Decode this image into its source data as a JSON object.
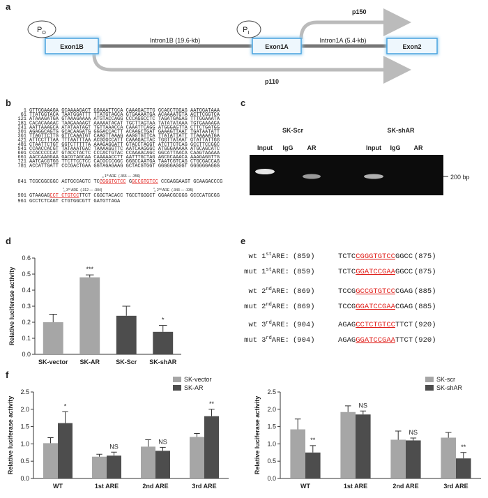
{
  "panel_labels": [
    "a",
    "b",
    "c",
    "d",
    "e",
    "f"
  ],
  "diagram": {
    "promoters": [
      {
        "p": "P",
        "sub": "O"
      },
      {
        "p": "P",
        "sub": "I"
      }
    ],
    "exons": [
      "Exon1B",
      "Exon1A",
      "Exon2"
    ],
    "introns": [
      "Intron1B (19.6-kb)",
      "Intron1A (5.4-kb)"
    ],
    "transcripts": [
      "p150",
      "p110"
    ]
  },
  "sequence": {
    "lines": [
      {
        "n": 1,
        "segments": [
          {
            "text": "GTTGGAAAGA GCAAAAGACT GGAAATTGCA CAAAGACTTG GCAGCTGGAG AATGGATAAA"
          }
        ]
      },
      {
        "n": 61,
        "segments": [
          {
            "text": "TTATGGTACA TAATGGATTT TTATGTAGCA GTGAAAATGA ACAAAATGTA ACTTCGGTCA"
          }
        ]
      },
      {
        "n": 121,
        "segments": [
          {
            "text": "ATAAAGATGA GTAAAGAAAA ATGTACCAGG CCCAGGCCTC TAGATGAGAG TTTGGAAATA"
          }
        ]
      },
      {
        "n": 181,
        "segments": [
          {
            "text": "CACACAAAAC TAAGAAAAGT AAAAATACAT TGCTTAGTAA TATATATAAA TGTGAAAAGA"
          }
        ]
      },
      {
        "n": 241,
        "segments": [
          {
            "text": "AATTAAAGCA ATATAATAGT TGTTAAACCA CAAATTCAGG ATGGGAGTTA CTTCTGATGG"
          }
        ]
      },
      {
        "n": 301,
        "segments": [
          {
            "text": "AGAGGCAGTG GCACAAGATG GGGACCACTT ACAAGCTGAT GAAAGTTAAT TGATAATATT"
          }
        ]
      },
      {
        "n": 361,
        "segments": [
          {
            "text": "TTAGTTCTTG GTTCAAATGT CAAGTTAAAG AAGGTGTTCA TTATATTATT TTAAAAATGA"
          }
        ]
      },
      {
        "n": 421,
        "segments": [
          {
            "text": "ATTCCTTTAA TTTAATTTAA ACGGGCCATT CAAAGACTAC TGGTTATAAT GTATTATTGG"
          }
        ]
      },
      {
        "n": 481,
        "segments": [
          {
            "text": "CTAATTCTGT GGTCTTTTTA AAAGAGGATT GTACCTAGGT ATCTTCTCAG GCCTTCCGGC"
          }
        ]
      },
      {
        "n": 541,
        "segments": [
          {
            "text": "CCAACCACGT TATAAATGAC TAAAAGGTTC AATCAAGGGC ATGGGAAAAA ATGCAGCATC"
          }
        ]
      },
      {
        "n": 601,
        "segments": [
          {
            "text": "CCACCCCCAT GTACCTACTC CCCACTGTAC CCAAAACAGC GGCATTAACA CAAGTAAAAA"
          }
        ]
      },
      {
        "n": 661,
        "segments": [
          {
            "text": "AACCAAGGAA GACGTAGCAA CAAAAACCTT AATTTGCTAG AGCGCAAACA AAAGAGGTTG"
          }
        ]
      },
      {
        "n": 721,
        "segments": [
          {
            "text": "AATCACGTGG TTCTTCCTCC CACGCCCGGC GGGCCAATGA TAATCGTCAG CTGCGACCAG"
          }
        ]
      },
      {
        "n": 781,
        "segments": [
          {
            "text": "ACCATTGATT CCCGACTGAA GGTAGAGAAG GCTACGTGGT GGGGGAGGGT GGGGGGAGGG"
          }
        ]
      },
      {
        "n": 841,
        "segments": [
          {
            "text": "TCGCGGCGGC ACTGCCAGTC TC"
          },
          {
            "text": "CGGGTGTCC",
            "highlight": true
          },
          {
            "text": " G"
          },
          {
            "text": "GCCGTGTCC",
            "highlight": true
          },
          {
            "text": " CCGAGGAAGT GCAAGACCCG"
          }
        ]
      },
      {
        "n": 901,
        "segments": [
          {
            "text": "GTAAGAG"
          },
          {
            "text": "CCT CTGTCC",
            "highlight": true
          },
          {
            "text": "TTCT CGGCTACACC TGCCTGGGCT GGAACGCGGG GCCCATGCGG"
          }
        ]
      },
      {
        "n": 961,
        "segments": [
          {
            "text": "GCCTCTCAGT CTGTGGCGTT GATGTTAGA"
          }
        ]
      }
    ],
    "sites": [
      {
        "ord": "1",
        "sup": "st",
        "name": " ARE",
        "range": "(-366 — -356)"
      },
      {
        "ord": "3",
        "sup": "rd",
        "name": " ARE",
        "range": "(-312 — -304)"
      },
      {
        "ord": "2",
        "sup": "nd",
        "name": " ARE",
        "range": "(-343 — -335)"
      }
    ]
  },
  "gel": {
    "groups": [
      "SK-Scr",
      "SK-shAR"
    ],
    "lanes": [
      "Input",
      "IgG",
      "AR",
      "Input",
      "IgG",
      "AR"
    ],
    "marker": "200 bp"
  },
  "table": {
    "rows": [
      {
        "kind": "wt",
        "ord": "1",
        "sup": "st",
        "name": "ARE:",
        "start": "(859)",
        "pre": "TCTC",
        "site": "CGGGTGTCC",
        "post": "GGCC",
        "end": "(875)"
      },
      {
        "kind": "mut",
        "ord": "1",
        "sup": "st",
        "name": "ARE:",
        "start": "(859)",
        "pre": "TCTC",
        "site": "GGATCCGAA",
        "post": "GGCC",
        "end": "(875)"
      },
      {
        "kind": "wt",
        "ord": "2",
        "sup": "nd",
        "name": "ARE:",
        "start": "(869)",
        "pre": "TCCG",
        "site": "GCCGTGTCC",
        "post": "CGAG",
        "end": "(885)"
      },
      {
        "kind": "mut",
        "ord": "2",
        "sup": "nd",
        "name": "ARE:",
        "start": "(869)",
        "pre": "TCCG",
        "site": "GGATCCGAA",
        "post": "CGAG",
        "end": "(885)"
      },
      {
        "kind": "wt",
        "ord": "3",
        "sup": "rd",
        "name": "ARE:",
        "start": "(904)",
        "pre": "AGAG",
        "site": "CCTCTGTCC",
        "post": "TTCT",
        "end": "(920)"
      },
      {
        "kind": "mut",
        "ord": "3",
        "sup": "rd",
        "name": "ARE:",
        "start": "(904)",
        "pre": "AGAG",
        "site": "GGATCCGAA",
        "post": "TTCT",
        "end": "(920)"
      }
    ]
  },
  "chart_data": [
    {
      "type": "bar",
      "ylabel": "Relative luciferase activity",
      "categories": [
        "SK-vector",
        "SK-AR",
        "SK-Scr",
        "SK-shAR"
      ],
      "values": [
        0.2,
        0.48,
        0.24,
        0.14
      ],
      "errors": [
        0.05,
        0.015,
        0.06,
        0.04
      ],
      "colors": [
        "#a6a6a6",
        "#a6a6a6",
        "#4d4d4d",
        "#4d4d4d"
      ],
      "annotations": [
        {
          "x": "SK-AR",
          "text": "***"
        },
        {
          "x": "SK-shAR",
          "text": "*"
        }
      ],
      "ylim": [
        0,
        0.6
      ],
      "yticks": [
        {
          "value": 0,
          "label": "0.0"
        },
        0.1,
        0.2,
        0.3,
        0.4,
        0.5,
        0.6
      ]
    },
    {
      "type": "bar",
      "ylabel": "Relative luciferase activity",
      "categories": [
        "WT",
        "1st ARE",
        "2nd ARE",
        "3rd ARE"
      ],
      "series": [
        {
          "name": "SK-vector",
          "color": "#a6a6a6",
          "values": [
            1.02,
            0.63,
            0.92,
            1.2
          ],
          "errors": [
            0.16,
            0.07,
            0.2,
            0.1
          ]
        },
        {
          "name": "SK-AR",
          "color": "#4d4d4d",
          "values": [
            1.6,
            0.66,
            0.8,
            1.8
          ],
          "errors": [
            0.33,
            0.1,
            0.1,
            0.2
          ]
        }
      ],
      "annotations": [
        {
          "x": "WT",
          "text": "*"
        },
        {
          "x": "1st ARE",
          "text": "NS"
        },
        {
          "x": "2nd ARE",
          "text": "NS"
        },
        {
          "x": "3rd ARE",
          "text": "**"
        }
      ],
      "legend": "upper right",
      "ylim": [
        0,
        2.5
      ],
      "yticks": [
        {
          "value": 0,
          "label": "0.0"
        },
        0.5,
        {
          "value": 1,
          "label": "1.0"
        },
        1.5,
        {
          "value": 2,
          "label": "2.0"
        },
        2.5
      ]
    },
    {
      "type": "bar",
      "ylabel": "Relative luciferase activity",
      "categories": [
        "WT",
        "1st ARE",
        "2nd ARE",
        "3rd ARE"
      ],
      "series": [
        {
          "name": "SK-scr",
          "color": "#a6a6a6",
          "values": [
            1.42,
            1.92,
            1.12,
            1.18
          ],
          "errors": [
            0.3,
            0.18,
            0.25,
            0.15
          ]
        },
        {
          "name": "SK-shAR",
          "color": "#4d4d4d",
          "values": [
            0.75,
            1.85,
            1.1,
            0.58
          ],
          "errors": [
            0.2,
            0.1,
            0.07,
            0.17
          ]
        }
      ],
      "annotations": [
        {
          "x": "WT",
          "text": "**"
        },
        {
          "x": "1st ARE",
          "text": "NS"
        },
        {
          "x": "2nd ARE",
          "text": "NS"
        },
        {
          "x": "3rd ARE",
          "text": "**"
        }
      ],
      "legend": "upper right",
      "ylim": [
        0,
        2.5
      ],
      "yticks": [
        {
          "value": 0,
          "label": "0.0"
        },
        0.5,
        {
          "value": 1,
          "label": "1.0"
        },
        1.5,
        {
          "value": 2,
          "label": "2.0"
        },
        2.5
      ]
    }
  ]
}
